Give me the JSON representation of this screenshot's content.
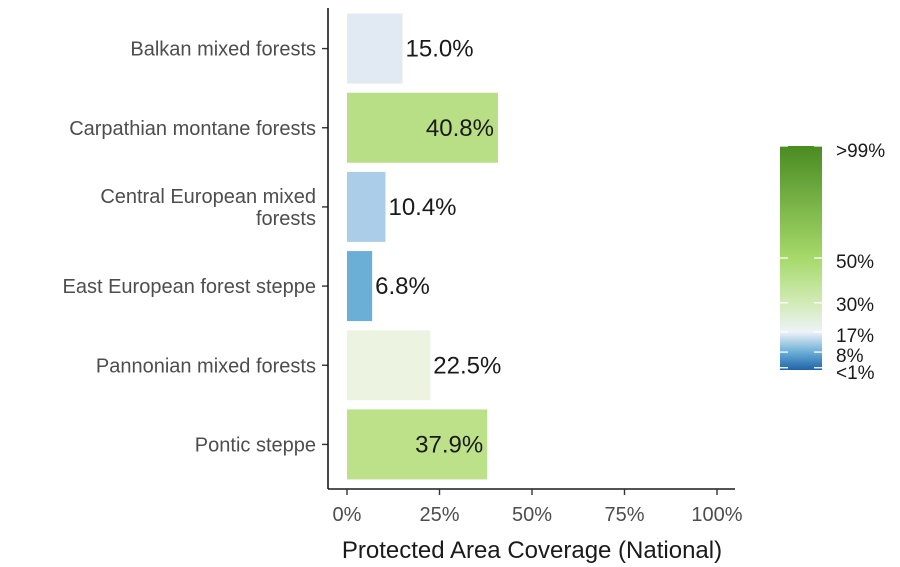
{
  "chart_data": {
    "type": "bar",
    "orientation": "horizontal",
    "categories": [
      "Balkan mixed forests",
      "Carpathian montane forests",
      "Central European mixed forests",
      "East European forest steppe",
      "Pannonian mixed forests",
      "Pontic steppe"
    ],
    "category_lines": [
      [
        "Balkan mixed forests"
      ],
      [
        "Carpathian montane forests"
      ],
      [
        "Central European mixed",
        "forests"
      ],
      [
        "East European forest steppe"
      ],
      [
        "Pannonian mixed forests"
      ],
      [
        "Pontic steppe"
      ]
    ],
    "values": [
      15.0,
      40.8,
      10.4,
      6.8,
      22.5,
      37.9
    ],
    "value_labels": [
      "15.0%",
      "40.8%",
      "10.4%",
      "6.8%",
      "22.5%",
      "37.9%"
    ],
    "bar_colors": [
      "#e1e9f3",
      "#b8df85",
      "#abcde8",
      "#6baed6",
      "#ecf4e1",
      "#bde189"
    ],
    "xlabel": "Protected Area Coverage (National)",
    "ylabel": "",
    "xlim": [
      0,
      100
    ],
    "x_ticks": [
      0,
      25,
      50,
      75,
      100
    ],
    "x_tick_labels": [
      "0%",
      "25%",
      "50%",
      "75%",
      "100%"
    ],
    "grid": false,
    "legend": {
      "type": "colorbar",
      "placement": "right",
      "labels": [
        ">99%",
        "50%",
        "30%",
        "17%",
        "8%",
        "<1%"
      ],
      "label_values": [
        100,
        50,
        30,
        17,
        8,
        1
      ],
      "gradient_stops": [
        {
          "value": 0,
          "color": "#1f63a8"
        },
        {
          "value": 8,
          "color": "#6baed6"
        },
        {
          "value": 17,
          "color": "#eef2f8"
        },
        {
          "value": 30,
          "color": "#d2ebb6"
        },
        {
          "value": 50,
          "color": "#a6d96a"
        },
        {
          "value": 100,
          "color": "#4a8b22"
        }
      ]
    }
  }
}
